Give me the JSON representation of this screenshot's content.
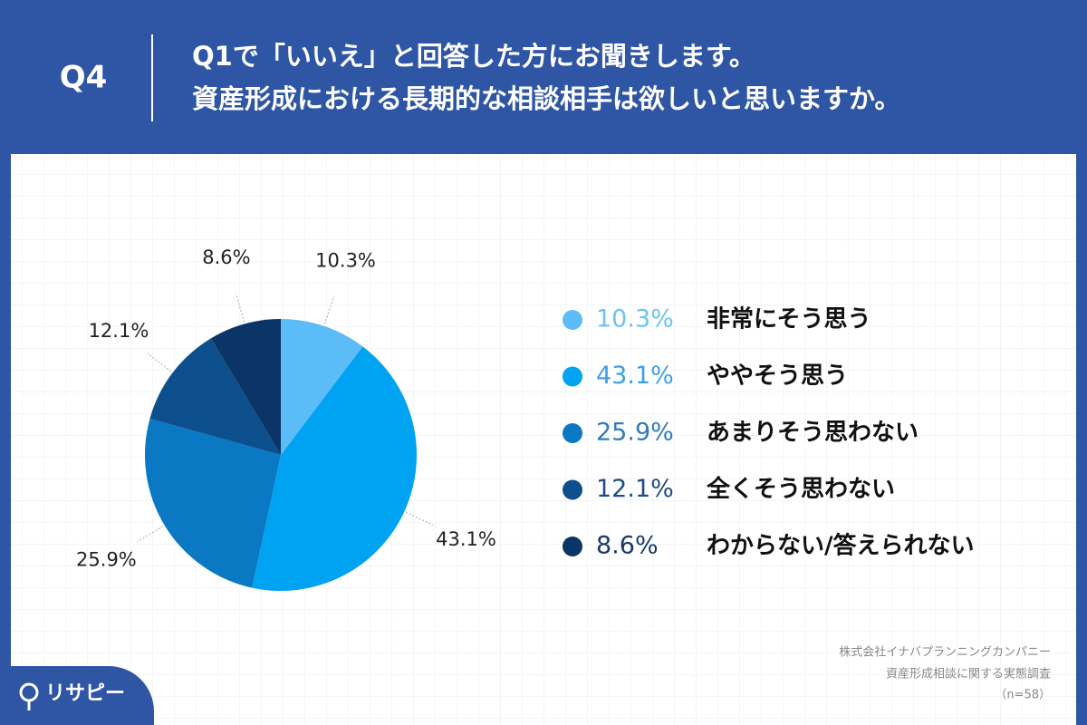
{
  "header": {
    "label": "Q4",
    "question": [
      "Q1で「いいえ」と回答した方にお聞きします。",
      "資産形成における長期的な相談相手は欲しいと思いますか。"
    ]
  },
  "chart_data": {
    "type": "pie",
    "categories": [
      "非常にそう思う",
      "ややそう思う",
      "あまりそう思わない",
      "全くそう思わない",
      "わからない/答えられない"
    ],
    "values": [
      10.3,
      43.1,
      25.9,
      12.1,
      8.6
    ],
    "value_labels": [
      "10.3%",
      "43.1%",
      "25.9%",
      "12.1%",
      "8.6%"
    ],
    "colors": [
      "#5cbcf8",
      "#00a2f2",
      "#0a78c2",
      "#0c4f8c",
      "#0a3566"
    ],
    "legend_text_colors": [
      "#6cc3f5",
      "#3d9fe6",
      "#2f7cc0",
      "#1f4c86",
      "#173a6b"
    ]
  },
  "source": [
    "株式会社イナバプランニングカンパニー",
    "資産形成相談に関する実態調査",
    "（n=58）"
  ],
  "logo": "リサピー"
}
